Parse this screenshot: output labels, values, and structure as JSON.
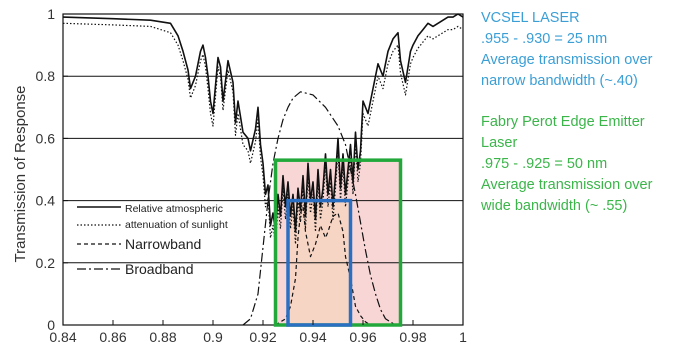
{
  "chart_data": {
    "type": "line",
    "xlabel": "",
    "ylabel": "Transmission of Response",
    "xlim": [
      0.84,
      1.0
    ],
    "ylim": [
      0,
      1
    ],
    "x_ticks": [
      "0.84",
      "0.86",
      "0.88",
      "0.9",
      "0.92",
      "0.94",
      "0.96",
      "0.98",
      "1"
    ],
    "y_ticks": [
      "0",
      "0.2",
      "0.4",
      "0.6",
      "0.8",
      "1"
    ],
    "grid": "horizontal lines at 0.2, 0.4, 0.6, 0.8",
    "legend": [
      {
        "style": "solid",
        "label_lines": [
          "Relative atmospheric",
          "attenuation of sunlight"
        ]
      },
      {
        "style": "dashed",
        "label_lines": [
          "Narrowband"
        ]
      },
      {
        "style": "dash-dot",
        "label_lines": [
          "Broadband"
        ]
      }
    ],
    "series": [
      {
        "style": "solid",
        "x": [
          0.84,
          0.86,
          0.875,
          0.883,
          0.886,
          0.888,
          0.89,
          0.891,
          0.893,
          0.895,
          0.896,
          0.897,
          0.898,
          0.899,
          0.9,
          0.902,
          0.903,
          0.904,
          0.906,
          0.908,
          0.909,
          0.91,
          0.912,
          0.914,
          0.915,
          0.917,
          0.918,
          0.919,
          0.92,
          0.921,
          0.922,
          0.923,
          0.924,
          0.925,
          0.926,
          0.927,
          0.928,
          0.929,
          0.93,
          0.931,
          0.932,
          0.933,
          0.934,
          0.935,
          0.936,
          0.937,
          0.938,
          0.939,
          0.94,
          0.941,
          0.942,
          0.943,
          0.944,
          0.945,
          0.946,
          0.947,
          0.948,
          0.949,
          0.95,
          0.951,
          0.952,
          0.953,
          0.954,
          0.955,
          0.956,
          0.957,
          0.958,
          0.959,
          0.96,
          0.962,
          0.964,
          0.966,
          0.968,
          0.97,
          0.972,
          0.974,
          0.975,
          0.977,
          0.978,
          0.979,
          0.98,
          0.982,
          0.984,
          0.986,
          0.988,
          0.99,
          0.992,
          0.994,
          0.996,
          0.998,
          1.0
        ],
        "y": [
          0.99,
          0.985,
          0.98,
          0.97,
          0.93,
          0.88,
          0.82,
          0.76,
          0.8,
          0.88,
          0.9,
          0.86,
          0.8,
          0.72,
          0.68,
          0.86,
          0.83,
          0.72,
          0.85,
          0.78,
          0.65,
          0.72,
          0.62,
          0.6,
          0.56,
          0.63,
          0.7,
          0.58,
          0.52,
          0.42,
          0.45,
          0.32,
          0.36,
          0.3,
          0.42,
          0.35,
          0.48,
          0.38,
          0.46,
          0.35,
          0.42,
          0.3,
          0.44,
          0.37,
          0.48,
          0.35,
          0.52,
          0.4,
          0.46,
          0.34,
          0.5,
          0.38,
          0.44,
          0.55,
          0.42,
          0.5,
          0.38,
          0.48,
          0.6,
          0.44,
          0.55,
          0.42,
          0.5,
          0.58,
          0.46,
          0.62,
          0.5,
          0.56,
          0.72,
          0.68,
          0.76,
          0.84,
          0.8,
          0.88,
          0.92,
          0.94,
          0.85,
          0.78,
          0.83,
          0.88,
          0.9,
          0.93,
          0.95,
          0.97,
          0.96,
          0.97,
          0.98,
          0.99,
          0.99,
          1.0,
          0.99
        ]
      },
      {
        "style": "dotted",
        "x": [
          0.84,
          0.86,
          0.875,
          0.883,
          0.886,
          0.888,
          0.89,
          0.891,
          0.893,
          0.895,
          0.896,
          0.897,
          0.898,
          0.899,
          0.9,
          0.902,
          0.903,
          0.904,
          0.906,
          0.908,
          0.909,
          0.91,
          0.912,
          0.914,
          0.915,
          0.917,
          0.918,
          0.919,
          0.92,
          0.921,
          0.922,
          0.923,
          0.924,
          0.925,
          0.926,
          0.927,
          0.928,
          0.929,
          0.93,
          0.931,
          0.932,
          0.933,
          0.934,
          0.935,
          0.936,
          0.937,
          0.938,
          0.939,
          0.94,
          0.941,
          0.942,
          0.943,
          0.944,
          0.945,
          0.946,
          0.947,
          0.948,
          0.949,
          0.95,
          0.951,
          0.952,
          0.953,
          0.954,
          0.955,
          0.956,
          0.957,
          0.958,
          0.959,
          0.96,
          0.962,
          0.964,
          0.966,
          0.968,
          0.97,
          0.972,
          0.974,
          0.975,
          0.977,
          0.978,
          0.979,
          0.98,
          0.982,
          0.984,
          0.986,
          0.988,
          0.99,
          0.992,
          0.994,
          0.996,
          0.998,
          1.0
        ],
        "y": [
          0.97,
          0.965,
          0.96,
          0.94,
          0.9,
          0.85,
          0.79,
          0.73,
          0.77,
          0.85,
          0.87,
          0.83,
          0.76,
          0.68,
          0.64,
          0.83,
          0.8,
          0.69,
          0.82,
          0.75,
          0.61,
          0.68,
          0.58,
          0.56,
          0.52,
          0.59,
          0.66,
          0.54,
          0.48,
          0.38,
          0.41,
          0.28,
          0.32,
          0.26,
          0.38,
          0.31,
          0.44,
          0.34,
          0.42,
          0.31,
          0.38,
          0.26,
          0.4,
          0.33,
          0.44,
          0.31,
          0.48,
          0.36,
          0.42,
          0.3,
          0.46,
          0.34,
          0.4,
          0.51,
          0.38,
          0.46,
          0.34,
          0.44,
          0.56,
          0.4,
          0.51,
          0.38,
          0.46,
          0.54,
          0.42,
          0.58,
          0.46,
          0.52,
          0.68,
          0.64,
          0.72,
          0.8,
          0.76,
          0.84,
          0.88,
          0.9,
          0.81,
          0.74,
          0.79,
          0.84,
          0.86,
          0.89,
          0.91,
          0.93,
          0.92,
          0.93,
          0.94,
          0.95,
          0.95,
          0.96,
          0.95
        ]
      },
      {
        "style": "dashed",
        "name": "Narrowband",
        "x": [
          0.925,
          0.929,
          0.931,
          0.933,
          0.934,
          0.935,
          0.936,
          0.937,
          0.939,
          0.941,
          0.943,
          0.945,
          0.946,
          0.948,
          0.95,
          0.952,
          0.953,
          0.955,
          0.957,
          0.959,
          0.961,
          0.963
        ],
        "y": [
          0.0,
          0.02,
          0.06,
          0.15,
          0.28,
          0.36,
          0.38,
          0.3,
          0.22,
          0.26,
          0.32,
          0.28,
          0.3,
          0.35,
          0.36,
          0.3,
          0.22,
          0.15,
          0.06,
          0.03,
          0.01,
          0.0
        ]
      },
      {
        "style": "dash-dot",
        "name": "Broadband",
        "x": [
          0.912,
          0.915,
          0.918,
          0.92,
          0.922,
          0.924,
          0.926,
          0.928,
          0.93,
          0.932,
          0.935,
          0.94,
          0.945,
          0.95,
          0.953,
          0.955,
          0.957,
          0.959,
          0.961,
          0.963,
          0.965,
          0.967,
          0.969,
          0.971,
          0.973
        ],
        "y": [
          0.0,
          0.02,
          0.1,
          0.25,
          0.4,
          0.52,
          0.6,
          0.66,
          0.7,
          0.73,
          0.75,
          0.74,
          0.7,
          0.64,
          0.58,
          0.5,
          0.42,
          0.33,
          0.24,
          0.16,
          0.1,
          0.05,
          0.02,
          0.01,
          0.0
        ]
      }
    ],
    "highlights": [
      {
        "name": "fabry-perot-band",
        "x": [
          0.925,
          0.975
        ],
        "y": [
          0,
          0.53
        ],
        "stroke": "#22a83a",
        "fill": "#f7c8c8"
      },
      {
        "name": "vcsel-band",
        "x": [
          0.93,
          0.955
        ],
        "y": [
          0,
          0.4
        ],
        "stroke": "#2b6fc2",
        "fill": "#f6d4bf"
      }
    ]
  },
  "annotations": {
    "vcsel": {
      "color": "#3b9fd6",
      "lines": [
        "VCSEL LASER",
        ".955 - .930 = 25 nm",
        "Average transmission over",
        "narrow bandwidth (~.40)"
      ]
    },
    "fabry_perot": {
      "color": "#3bb54a",
      "lines": [
        "Fabry Perot Edge Emitter",
        "Laser",
        ".975 - .925 = 50 nm",
        "Average transmission over",
        "wide bandwidth (~ .55)"
      ]
    }
  }
}
